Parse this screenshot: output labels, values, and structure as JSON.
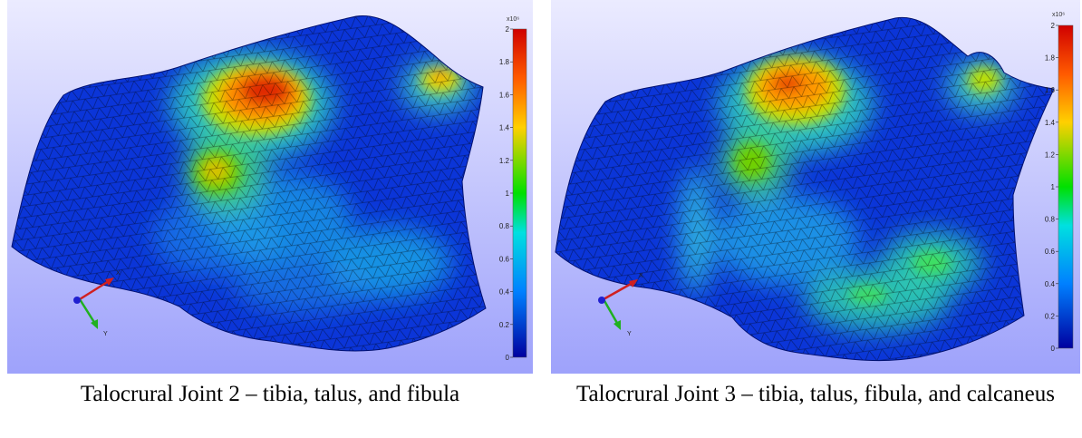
{
  "figures": [
    {
      "caption": "Talocrural Joint 2 – tibia, talus, and fibula",
      "colorbar": {
        "multiplier": "x10⁶",
        "ticks": [
          "2",
          "1.8",
          "1.6",
          "1.4",
          "1.2",
          "1",
          "0.8",
          "0.6",
          "0.4",
          "0.2",
          "0"
        ],
        "min": 0,
        "max": 2,
        "colors": [
          "#ff0000",
          "#ff8000",
          "#ffff00",
          "#00ff00",
          "#00ffff",
          "#0050ff",
          "#0000a0"
        ]
      },
      "axes": {
        "x": "X",
        "y": "Y"
      }
    },
    {
      "caption": "Talocrural Joint 3 – tibia, talus, fibula, and calcaneus",
      "colorbar": {
        "multiplier": "x10⁶",
        "ticks": [
          "2",
          "1.8",
          "1.6",
          "1.4",
          "1.2",
          "1",
          "0.8",
          "0.6",
          "0.4",
          "0.2",
          "0"
        ],
        "min": 0,
        "max": 2,
        "colors": [
          "#ff0000",
          "#ff8000",
          "#ffff00",
          "#00ff00",
          "#00ffff",
          "#0050ff",
          "#0000a0"
        ]
      },
      "axes": {
        "x": "X",
        "y": "Y"
      }
    }
  ],
  "colors": {
    "background_top": "#ebebff",
    "background_bottom": "#9ea2fb",
    "surface_base": "#0b35d8",
    "mesh_line": "#000000",
    "axis_x": "#d02020",
    "axis_y": "#20b020",
    "axis_z": "#2020d0"
  }
}
